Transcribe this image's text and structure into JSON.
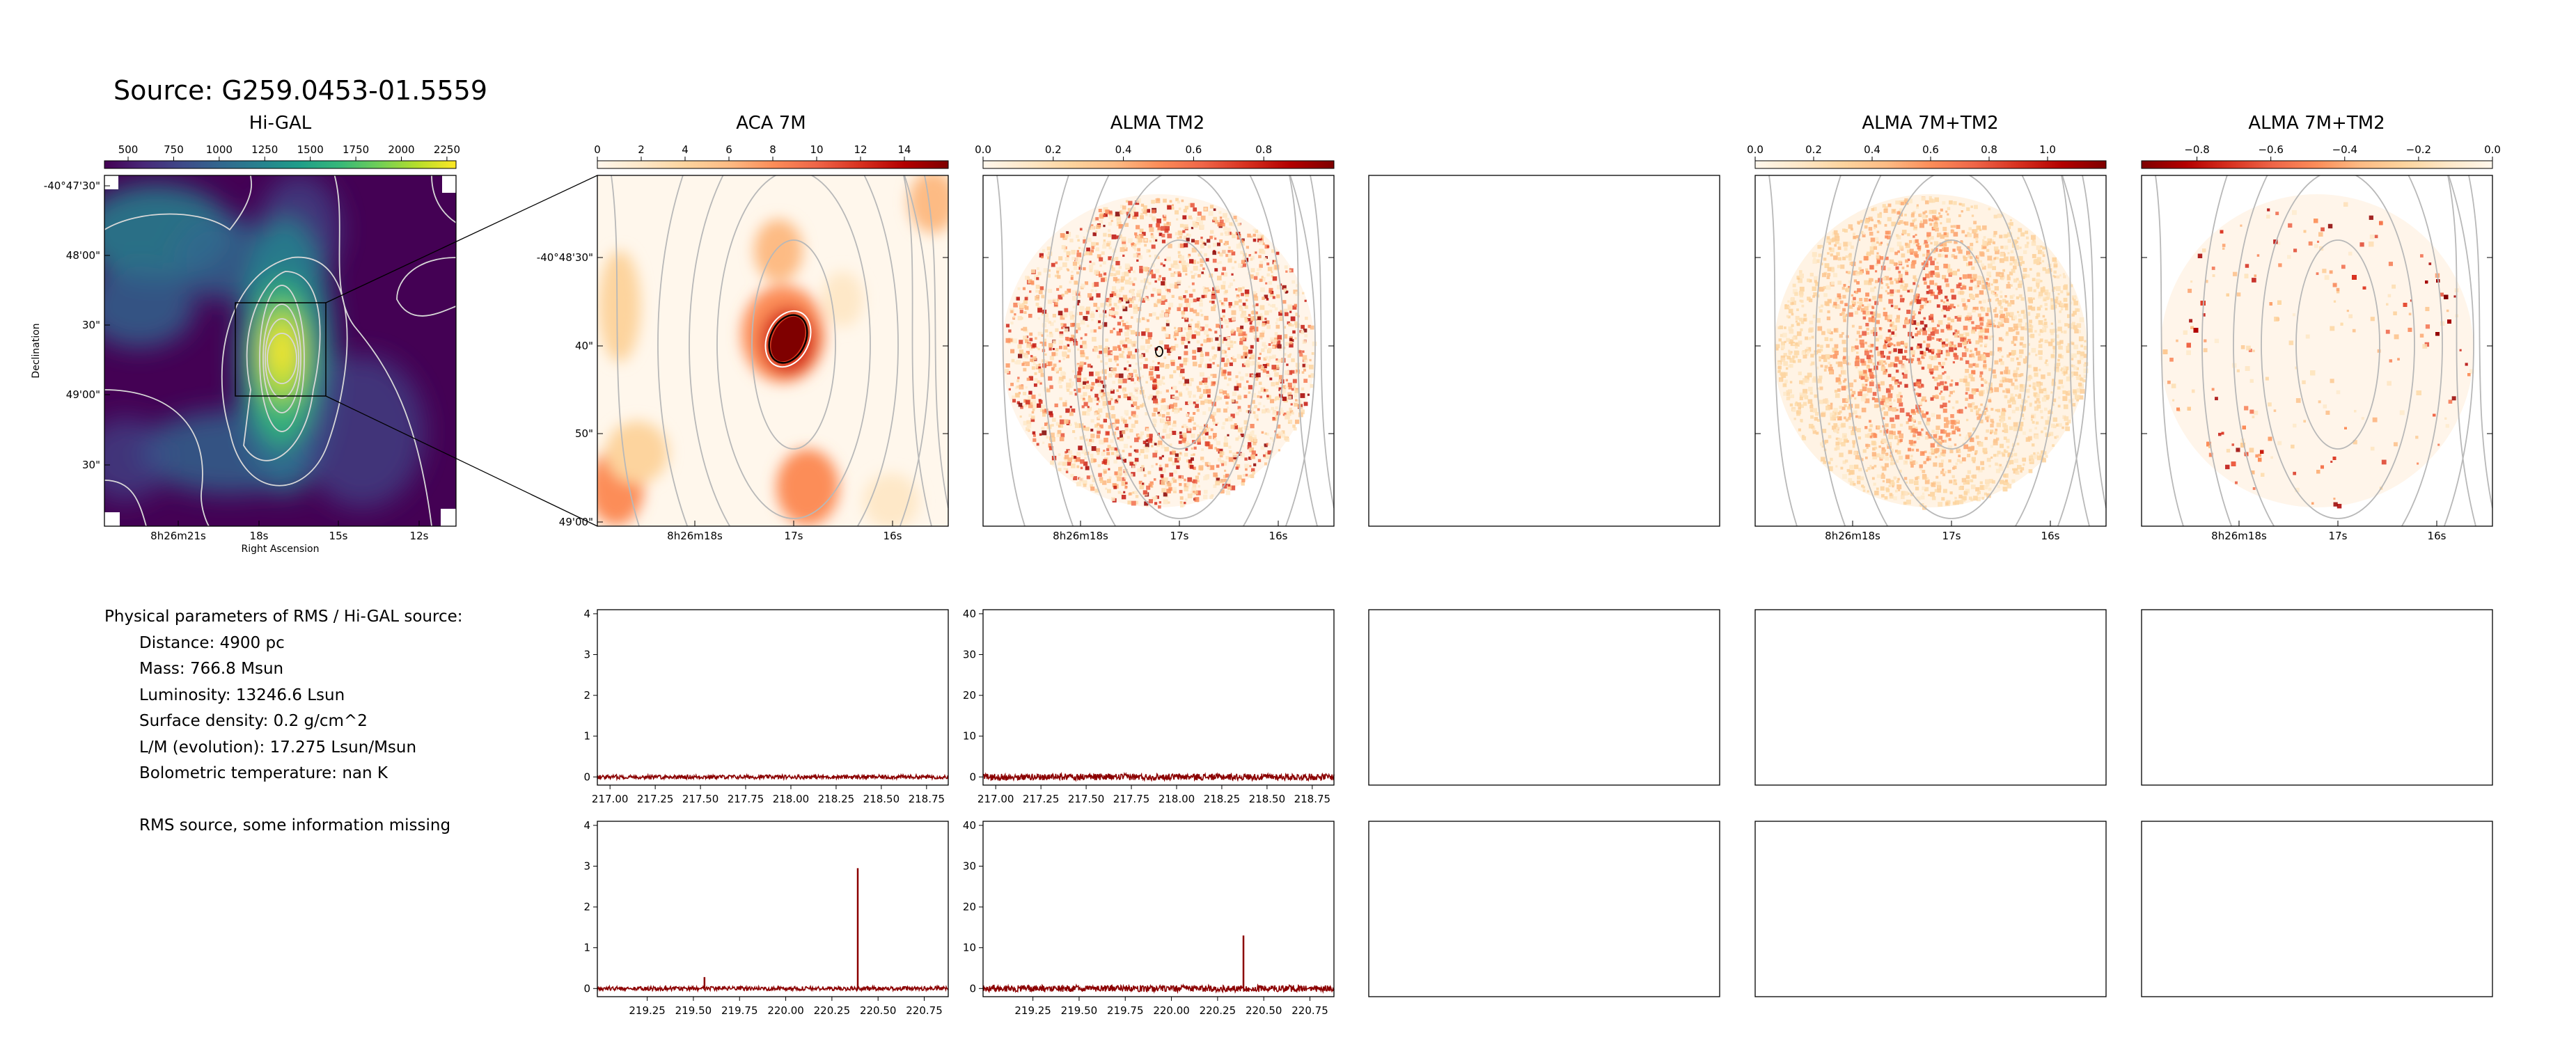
{
  "page": {
    "title": "Source: G259.0453-01.5559"
  },
  "panels": [
    {
      "title": "Hi-GAL"
    },
    {
      "title": "ACA 7M"
    },
    {
      "title": "ALMA TM2"
    },
    {
      "title": ""
    },
    {
      "title": "ALMA 7M+TM2"
    },
    {
      "title": "ALMA 7M+TM2"
    }
  ],
  "axes_labels": {
    "higal_xlabel": "Right Ascension",
    "higal_ylabel": "Declination"
  },
  "params": {
    "heading": "Physical parameters of RMS / Hi-GAL source:",
    "distance": "Distance: 4900 pc",
    "mass": "Mass: 766.8 Msun",
    "luminosity": "Luminosity: 13246.6 Lsun",
    "surface_density": "Surface density: 0.2 g/cm^2",
    "lm": "L/M (evolution): 17.275 Lsun/Msun",
    "tbol": "Bolometric temperature: nan K",
    "note": "RMS source, some information missing"
  },
  "colors": {
    "viridis": [
      "#440154",
      "#482878",
      "#3e4a89",
      "#31688e",
      "#26828e",
      "#1f9e89",
      "#35b779",
      "#6ece58",
      "#b5de2b",
      "#fde725"
    ],
    "orrd": [
      "#fff7ec",
      "#fee8c8",
      "#fdd49e",
      "#fdbb84",
      "#fc8d59",
      "#ef6548",
      "#d7301f",
      "#b30000",
      "#7f0000"
    ],
    "spectrum": "#8b0000",
    "contour": "#b8b8b8"
  },
  "chart_data": [
    {
      "type": "heatmap",
      "name": "Hi-GAL",
      "colorbar_ticks": [
        "500",
        "750",
        "1000",
        "1250",
        "1500",
        "1750",
        "2000",
        "2250"
      ],
      "colorbar_range": [
        370,
        2300
      ],
      "x_ticks": [
        "8h26m21s",
        "18s",
        "15s",
        "12s"
      ],
      "y_ticks": [
        "-40°47'30\"",
        "48'00\"",
        "30\"",
        "49'00\"",
        "30\""
      ],
      "xlabel": "Right Ascension",
      "ylabel": "Declination",
      "colormap": "viridis"
    },
    {
      "type": "heatmap",
      "name": "ACA 7M",
      "colorbar_ticks": [
        "0",
        "2",
        "4",
        "6",
        "8",
        "10",
        "12",
        "14"
      ],
      "colorbar_range": [
        0,
        16
      ],
      "x_ticks": [
        "8h26m18s",
        "17s",
        "16s"
      ],
      "y_ticks": [
        "-40°48'30\"",
        "40\"",
        "50\"",
        "49'00\""
      ],
      "colormap": "OrRd"
    },
    {
      "type": "heatmap",
      "name": "ALMA TM2",
      "colorbar_ticks": [
        "0.0",
        "0.2",
        "0.4",
        "0.6",
        "0.8"
      ],
      "colorbar_range": [
        0,
        1.0
      ],
      "x_ticks": [
        "8h26m18s",
        "17s",
        "16s"
      ],
      "colormap": "OrRd"
    },
    {
      "type": "heatmap",
      "name": "ALMA 7M+TM2",
      "colorbar_ticks": [
        "0.0",
        "0.2",
        "0.4",
        "0.6",
        "0.8",
        "1.0"
      ],
      "colorbar_range": [
        0,
        1.2
      ],
      "x_ticks": [
        "8h26m18s",
        "17s",
        "16s"
      ],
      "colormap": "OrRd"
    },
    {
      "type": "heatmap",
      "name": "ALMA 7M+TM2",
      "colorbar_ticks": [
        "−0.8",
        "−0.6",
        "−0.4",
        "−0.2",
        "0.0"
      ],
      "colorbar_range": [
        -0.95,
        0
      ],
      "x_ticks": [
        "8h26m18s",
        "17s",
        "16s"
      ],
      "colormap": "OrRd_r"
    },
    {
      "type": "line",
      "name": "ACA 7M spectrum window 1",
      "x_ticks": [
        "217.00",
        "217.25",
        "217.50",
        "217.75",
        "218.00",
        "218.25",
        "218.50",
        "218.75"
      ],
      "xlim": [
        216.93,
        218.87
      ],
      "y_ticks": [
        "0",
        "1",
        "2",
        "3",
        "4"
      ],
      "ylim": [
        -0.2,
        4.1
      ],
      "noise": 0.05,
      "peaks": []
    },
    {
      "type": "line",
      "name": "ALMA TM2 spectrum window 1",
      "x_ticks": [
        "217.00",
        "217.25",
        "217.50",
        "217.75",
        "218.00",
        "218.25",
        "218.50",
        "218.75"
      ],
      "xlim": [
        216.93,
        218.87
      ],
      "y_ticks": [
        "0",
        "10",
        "20",
        "30",
        "40"
      ],
      "ylim": [
        -2,
        41
      ],
      "noise": 0.8,
      "peaks": []
    },
    {
      "type": "line",
      "name": "ACA 7M spectrum window 2",
      "x_ticks": [
        "219.25",
        "219.50",
        "219.75",
        "220.00",
        "220.25",
        "220.50",
        "220.75"
      ],
      "xlim": [
        218.98,
        220.88
      ],
      "y_ticks": [
        "0",
        "1",
        "2",
        "3",
        "4"
      ],
      "ylim": [
        -0.2,
        4.1
      ],
      "noise": 0.05,
      "peaks": [
        [
          219.56,
          0.28
        ],
        [
          220.39,
          2.95
        ]
      ]
    },
    {
      "type": "line",
      "name": "ALMA TM2 spectrum window 2",
      "x_ticks": [
        "219.25",
        "219.50",
        "219.75",
        "220.00",
        "220.25",
        "220.50",
        "220.75"
      ],
      "xlim": [
        218.98,
        220.88
      ],
      "y_ticks": [
        "0",
        "10",
        "20",
        "30",
        "40"
      ],
      "ylim": [
        -2,
        41
      ],
      "noise": 0.8,
      "peaks": [
        [
          220.39,
          13.0
        ]
      ]
    }
  ]
}
